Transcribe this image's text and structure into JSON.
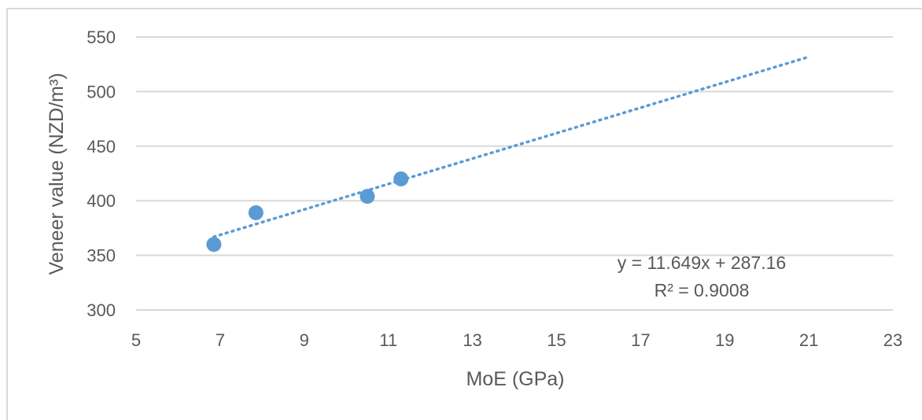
{
  "chart_data": {
    "type": "scatter",
    "xlabel": "MoE (GPa)",
    "ylabel": "Veneer value (NZD/m³)",
    "xlim": [
      5,
      23
    ],
    "ylim": [
      300,
      550
    ],
    "x_ticks": [
      5,
      7,
      9,
      11,
      13,
      15,
      17,
      19,
      21,
      23
    ],
    "y_ticks": [
      300,
      350,
      400,
      450,
      500,
      550
    ],
    "grid": "horizontal",
    "series": [
      {
        "color": "#5b9bd5",
        "points": [
          {
            "x": 6.85,
            "y": 360
          },
          {
            "x": 7.85,
            "y": 389
          },
          {
            "x": 10.5,
            "y": 404
          },
          {
            "x": 11.3,
            "y": 420
          }
        ]
      }
    ],
    "trendline": {
      "type": "linear",
      "slope": 11.649,
      "intercept": 287.16,
      "x_range": [
        6.85,
        21
      ],
      "style": "dotted",
      "color": "#5b9bd5"
    },
    "annotations": {
      "equation": "y = 11.649x + 287.16",
      "r_squared": "R² = 0.9008"
    }
  }
}
